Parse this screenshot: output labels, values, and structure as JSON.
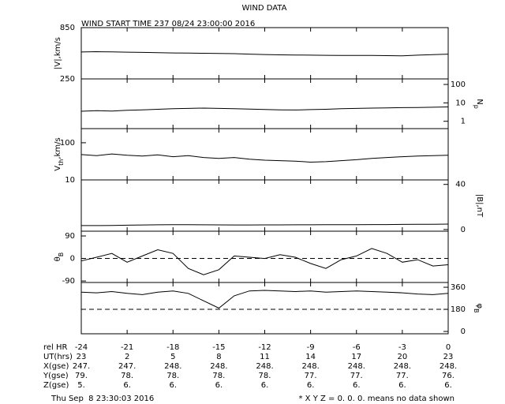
{
  "header": {
    "title": "WIND DATA",
    "subtitle": "WIND START TIME 237 08/24 23:00:00 2016"
  },
  "chart_data": [
    {
      "type": "line",
      "ylabel": [
        "|V|,km/s"
      ],
      "axis_side": "left",
      "xlim": [
        -24,
        0
      ],
      "ylim": [
        250,
        850
      ],
      "yticks": [
        250,
        850
      ],
      "x": [
        -24,
        -23,
        -22,
        -21,
        -20,
        -19,
        -18,
        -17,
        -16,
        -15,
        -14,
        -13,
        -12,
        -11,
        -10,
        -9,
        -8,
        -7,
        -6,
        -5,
        -4,
        -3,
        -2,
        -1,
        0
      ],
      "values": [
        565,
        568,
        566,
        563,
        560,
        556,
        554,
        552,
        550,
        548,
        545,
        540,
        535,
        532,
        530,
        528,
        526,
        525,
        524,
        525,
        522,
        520,
        528,
        534,
        540
      ]
    },
    {
      "type": "line",
      "ylabel": [
        "N",
        "p"
      ],
      "axis_side": "right",
      "log": true,
      "xlim": [
        -24,
        0
      ],
      "ylim": [
        0.4,
        200
      ],
      "yticks": [
        1,
        10,
        100
      ],
      "x": [
        -24,
        -23,
        -22,
        -21,
        -20,
        -19,
        -18,
        -17,
        -16,
        -15,
        -14,
        -13,
        -12,
        -11,
        -10,
        -9,
        -8,
        -7,
        -6,
        -5,
        -4,
        -3,
        -2,
        -1,
        0
      ],
      "values": [
        3.5,
        3.8,
        3.6,
        4,
        4.2,
        4.5,
        4.8,
        5,
        5.2,
        5,
        4.8,
        4.6,
        4.4,
        4.2,
        4.1,
        4.3,
        4.5,
        4.8,
        5,
        5.2,
        5.3,
        5.5,
        5.6,
        5.8,
        6
      ]
    },
    {
      "type": "line",
      "ylabel": [
        "V",
        "th",
        ",km/s"
      ],
      "axis_side": "left",
      "log": true,
      "xlim": [
        -24,
        0
      ],
      "ylim": [
        10,
        240
      ],
      "yticks": [
        10,
        100
      ],
      "x": [
        -24,
        -23,
        -22,
        -21,
        -20,
        -19,
        -18,
        -17,
        -16,
        -15,
        -14,
        -13,
        -12,
        -11,
        -10,
        -9,
        -8,
        -7,
        -6,
        -5,
        -4,
        -3,
        -2,
        -1,
        0
      ],
      "values": [
        48,
        45,
        50,
        46,
        44,
        47,
        42,
        45,
        40,
        38,
        40,
        36,
        34,
        33,
        32,
        30,
        31,
        33,
        35,
        38,
        40,
        42,
        44,
        45,
        46
      ]
    },
    {
      "type": "line",
      "ylabel": [
        "|B|,nT"
      ],
      "axis_side": "right",
      "xlim": [
        -24,
        0
      ],
      "ylim": [
        -1.5,
        44
      ],
      "yticks": [
        0,
        40
      ],
      "x": [
        -24,
        -23,
        -22,
        -21,
        -20,
        -19,
        -18,
        -17,
        -16,
        -15,
        -14,
        -13,
        -12,
        -11,
        -10,
        -9,
        -8,
        -7,
        -6,
        -5,
        -4,
        -3,
        -2,
        -1,
        0
      ],
      "values": [
        3.5,
        3.5,
        3.6,
        3.8,
        4,
        4.2,
        4.3,
        4.3,
        4.2,
        4.1,
        4,
        4,
        4.1,
        4.1,
        4.2,
        4.2,
        4.3,
        4.3,
        4.3,
        4.4,
        4.4,
        4.5,
        4.6,
        4.6,
        4.8
      ]
    },
    {
      "type": "line",
      "ylabel": [
        "θ",
        "B"
      ],
      "axis_side": "left",
      "xlim": [
        -24,
        0
      ],
      "ylim": [
        -96,
        109
      ],
      "yticks": [
        -90,
        0,
        90
      ],
      "ref_line": 0,
      "x": [
        -24,
        -23,
        -22,
        -21,
        -20,
        -19,
        -18,
        -17,
        -16,
        -15,
        -14,
        -13,
        -12,
        -11,
        -10,
        -9,
        -8,
        -7,
        -6,
        -5,
        -4,
        -3,
        -2,
        -1,
        0
      ],
      "values": [
        -10,
        5,
        20,
        -15,
        10,
        35,
        20,
        -40,
        -65,
        -45,
        10,
        5,
        0,
        15,
        5,
        -20,
        -40,
        -5,
        10,
        40,
        20,
        -15,
        -5,
        -30,
        -25
      ]
    },
    {
      "type": "line",
      "ylabel": [
        "φ",
        "B"
      ],
      "axis_side": "right",
      "xlim": [
        -24,
        0
      ],
      "ylim": [
        -19,
        399
      ],
      "yticks": [
        0,
        180,
        360
      ],
      "ref_line": 180,
      "xticks": [
        -24,
        -21,
        -18,
        -15,
        -12,
        -9,
        -6,
        -3,
        0
      ],
      "x": [
        -24,
        -23,
        -22,
        -21,
        -20,
        -19,
        -18,
        -17,
        -16,
        -15,
        -14,
        -13,
        -12,
        -11,
        -10,
        -9,
        -8,
        -7,
        -6,
        -5,
        -4,
        -3,
        -2,
        -1,
        0
      ],
      "values": [
        320,
        315,
        325,
        310,
        300,
        320,
        330,
        310,
        250,
        190,
        290,
        330,
        335,
        330,
        325,
        330,
        320,
        325,
        330,
        325,
        320,
        315,
        305,
        300,
        310
      ]
    }
  ],
  "table": {
    "rel_hr_label": "rel HR",
    "rows": [
      {
        "label": "UT(hrs)",
        "cells": [
          "23",
          "2",
          "5",
          "8",
          "11",
          "14",
          "17",
          "20",
          "23"
        ]
      },
      {
        "label": "X(gse)",
        "cells": [
          "247.",
          "247.",
          "248.",
          "248.",
          "248.",
          "248.",
          "248.",
          "248.",
          "248."
        ]
      },
      {
        "label": "Y(gse)",
        "cells": [
          "79.",
          "78.",
          "78.",
          "78.",
          "78.",
          "77.",
          "77.",
          "77.",
          "76."
        ]
      },
      {
        "label": "Z(gse)",
        "cells": [
          "5.",
          "6.",
          "6.",
          "6.",
          "6.",
          "6.",
          "6.",
          "6.",
          "6."
        ]
      }
    ]
  },
  "footer": {
    "date": "Thu Sep  8 23:30:03 2016",
    "note": "* X Y Z = 0. 0. 0. means no data shown"
  }
}
